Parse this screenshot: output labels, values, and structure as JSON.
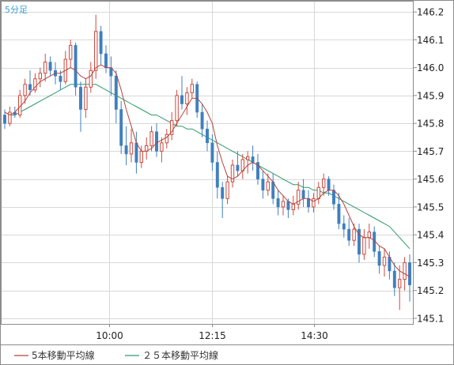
{
  "colors": {
    "up": "#cc4a3e",
    "down": "#3f7fbf",
    "ma5": "#b5443c",
    "ma25": "#2e9a6a",
    "grid": "#d8d8d8",
    "frame": "#8c8c8c",
    "timeframe": "#3aa0d8"
  },
  "chart_data": {
    "type": "candlestick",
    "timeframe_label": "5分足",
    "x_ticks": [
      "10:00",
      "12:15",
      "14:30"
    ],
    "y_ticks": [
      146.2,
      146.1,
      146.0,
      145.9,
      145.8,
      145.7,
      145.6,
      145.5,
      145.4,
      145.3,
      145.2,
      145.1
    ],
    "ylim": [
      145.08,
      146.24
    ],
    "grid": true,
    "legend_position": "bottom-left",
    "series": [
      {
        "name": "5本移動平均線",
        "color": "#b5443c"
      },
      {
        "name": "２５本移動平均線",
        "color": "#2e9a6a"
      }
    ],
    "candles": [
      [
        145.83,
        145.85,
        145.78,
        145.8
      ],
      [
        145.8,
        145.86,
        145.79,
        145.84
      ],
      [
        145.84,
        145.86,
        145.82,
        145.83
      ],
      [
        145.83,
        145.92,
        145.82,
        145.9
      ],
      [
        145.9,
        145.96,
        145.87,
        145.94
      ],
      [
        145.94,
        145.99,
        145.9,
        145.92
      ],
      [
        145.92,
        145.98,
        145.91,
        145.96
      ],
      [
        145.96,
        146.0,
        145.93,
        145.98
      ],
      [
        145.98,
        146.05,
        145.95,
        146.02
      ],
      [
        146.02,
        146.04,
        145.97,
        145.99
      ],
      [
        145.99,
        146.02,
        145.94,
        145.97
      ],
      [
        145.97,
        145.99,
        145.92,
        145.95
      ],
      [
        145.95,
        146.06,
        145.94,
        146.03
      ],
      [
        146.03,
        146.1,
        146.0,
        146.08
      ],
      [
        146.08,
        146.09,
        145.9,
        145.93
      ],
      [
        145.93,
        145.95,
        145.77,
        145.85
      ],
      [
        145.85,
        145.96,
        145.82,
        145.93
      ],
      [
        145.93,
        146.02,
        145.91,
        145.99
      ],
      [
        145.99,
        146.19,
        145.96,
        146.13
      ],
      [
        146.13,
        146.15,
        146.01,
        146.05
      ],
      [
        146.05,
        146.08,
        145.98,
        146.0
      ],
      [
        146.0,
        146.04,
        145.9,
        145.97
      ],
      [
        145.97,
        145.99,
        145.8,
        145.85
      ],
      [
        145.85,
        145.88,
        145.69,
        145.72
      ],
      [
        145.72,
        145.79,
        145.65,
        145.69
      ],
      [
        145.69,
        145.78,
        145.66,
        145.73
      ],
      [
        145.73,
        145.77,
        145.62,
        145.66
      ],
      [
        145.66,
        145.72,
        145.64,
        145.7
      ],
      [
        145.7,
        145.75,
        145.67,
        145.72
      ],
      [
        145.72,
        145.79,
        145.7,
        145.77
      ],
      [
        145.77,
        145.8,
        145.68,
        145.7
      ],
      [
        145.7,
        145.75,
        145.66,
        145.73
      ],
      [
        145.73,
        145.78,
        145.71,
        145.76
      ],
      [
        145.76,
        145.84,
        145.74,
        145.81
      ],
      [
        145.81,
        145.92,
        145.79,
        145.9
      ],
      [
        145.9,
        145.97,
        145.85,
        145.87
      ],
      [
        145.87,
        145.93,
        145.83,
        145.91
      ],
      [
        145.91,
        145.96,
        145.89,
        145.94
      ],
      [
        145.94,
        145.95,
        145.82,
        145.84
      ],
      [
        145.84,
        145.87,
        145.75,
        145.78
      ],
      [
        145.78,
        145.81,
        145.7,
        145.73
      ],
      [
        145.73,
        145.76,
        145.63,
        145.66
      ],
      [
        145.66,
        145.7,
        145.53,
        145.57
      ],
      [
        145.57,
        145.59,
        145.46,
        145.53
      ],
      [
        145.53,
        145.61,
        145.51,
        145.59
      ],
      [
        145.59,
        145.67,
        145.57,
        145.65
      ],
      [
        145.65,
        145.7,
        145.61,
        145.63
      ],
      [
        145.63,
        145.69,
        145.6,
        145.67
      ],
      [
        145.67,
        145.7,
        145.62,
        145.68
      ],
      [
        145.68,
        145.72,
        145.63,
        145.66
      ],
      [
        145.66,
        145.69,
        145.58,
        145.6
      ],
      [
        145.6,
        145.63,
        145.53,
        145.56
      ],
      [
        145.56,
        145.62,
        145.54,
        145.59
      ],
      [
        145.59,
        145.62,
        145.51,
        145.53
      ],
      [
        145.53,
        145.56,
        145.47,
        145.5
      ],
      [
        145.5,
        145.54,
        145.47,
        145.52
      ],
      [
        145.52,
        145.53,
        145.46,
        145.49
      ],
      [
        145.49,
        145.54,
        145.47,
        145.51
      ],
      [
        145.51,
        145.59,
        145.49,
        145.56
      ],
      [
        145.56,
        145.6,
        145.5,
        145.53
      ],
      [
        145.53,
        145.56,
        145.48,
        145.5
      ],
      [
        145.5,
        145.55,
        145.48,
        145.53
      ],
      [
        145.53,
        145.59,
        145.51,
        145.57
      ],
      [
        145.57,
        145.62,
        145.54,
        145.6
      ],
      [
        145.6,
        145.61,
        145.54,
        145.56
      ],
      [
        145.56,
        145.58,
        145.49,
        145.51
      ],
      [
        145.51,
        145.55,
        145.42,
        145.44
      ],
      [
        145.44,
        145.47,
        145.39,
        145.42
      ],
      [
        145.42,
        145.46,
        145.36,
        145.38
      ],
      [
        145.38,
        145.44,
        145.36,
        145.42
      ],
      [
        145.42,
        145.44,
        145.3,
        145.33
      ],
      [
        145.33,
        145.42,
        145.31,
        145.39
      ],
      [
        145.39,
        145.44,
        145.35,
        145.41
      ],
      [
        145.41,
        145.43,
        145.32,
        145.34
      ],
      [
        145.34,
        145.36,
        145.26,
        145.29
      ],
      [
        145.29,
        145.35,
        145.25,
        145.32
      ],
      [
        145.32,
        145.34,
        145.24,
        145.27
      ],
      [
        145.27,
        145.3,
        145.18,
        145.21
      ],
      [
        145.21,
        145.29,
        145.13,
        145.24
      ],
      [
        145.24,
        145.32,
        145.2,
        145.3
      ],
      [
        145.3,
        145.33,
        145.16,
        145.22
      ]
    ],
    "ma5": [
      145.84,
      145.83,
      145.84,
      145.86,
      145.88,
      145.91,
      145.93,
      145.95,
      145.96,
      145.97,
      145.98,
      145.98,
      145.99,
      146.0,
      145.99,
      145.97,
      145.96,
      145.97,
      146.0,
      146.01,
      146.0,
      146.0,
      145.98,
      145.92,
      145.85,
      145.79,
      145.73,
      145.7,
      145.7,
      145.71,
      145.73,
      145.74,
      145.75,
      145.77,
      145.8,
      145.83,
      145.86,
      145.89,
      145.89,
      145.87,
      145.84,
      145.8,
      145.72,
      145.66,
      145.61,
      145.6,
      145.61,
      145.63,
      145.65,
      145.66,
      145.65,
      145.63,
      145.61,
      145.59,
      145.56,
      145.54,
      145.52,
      145.51,
      145.52,
      145.53,
      145.53,
      145.52,
      145.53,
      145.55,
      145.56,
      145.56,
      145.54,
      145.51,
      145.47,
      145.43,
      145.4,
      145.39,
      145.39,
      145.38,
      145.36,
      145.35,
      145.32,
      145.29,
      145.27,
      145.26,
      145.25
    ],
    "ma25": [
      145.84,
      145.83,
      145.83,
      145.84,
      145.85,
      145.86,
      145.87,
      145.88,
      145.89,
      145.9,
      145.91,
      145.92,
      145.93,
      145.94,
      145.94,
      145.94,
      145.94,
      145.94,
      145.94,
      145.93,
      145.92,
      145.91,
      145.9,
      145.89,
      145.88,
      145.87,
      145.86,
      145.85,
      145.84,
      145.83,
      145.83,
      145.82,
      145.81,
      145.8,
      145.79,
      145.79,
      145.78,
      145.78,
      145.77,
      145.76,
      145.75,
      145.74,
      145.73,
      145.72,
      145.71,
      145.7,
      145.69,
      145.68,
      145.67,
      145.66,
      145.65,
      145.64,
      145.63,
      145.62,
      145.61,
      145.6,
      145.59,
      145.58,
      145.58,
      145.57,
      145.57,
      145.56,
      145.56,
      145.55,
      145.55,
      145.54,
      145.53,
      145.52,
      145.51,
      145.5,
      145.49,
      145.48,
      145.47,
      145.46,
      145.45,
      145.44,
      145.43,
      145.41,
      145.39,
      145.37,
      145.35
    ]
  }
}
